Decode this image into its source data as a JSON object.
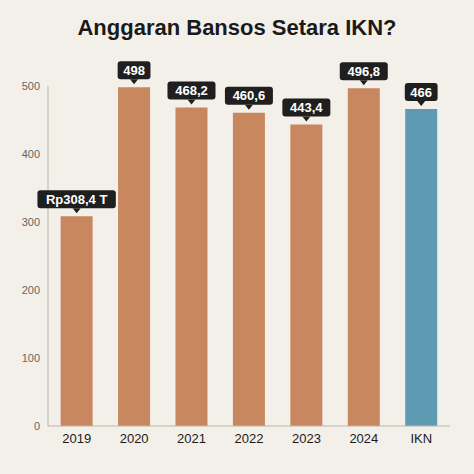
{
  "chart_data": {
    "type": "bar",
    "title": "Anggaran Bansos Setara IKN?",
    "categories": [
      "2019",
      "2020",
      "2021",
      "2022",
      "2023",
      "2024",
      "IKN"
    ],
    "values": [
      308.4,
      498,
      468.2,
      460.6,
      443.4,
      496.8,
      466
    ],
    "value_labels": [
      "Rp308,4 T",
      "498",
      "468,2",
      "460,6",
      "443,4",
      "496,8",
      "466"
    ],
    "colors": [
      "#c8875f",
      "#c8875f",
      "#c8875f",
      "#c8875f",
      "#c8875f",
      "#c8875f",
      "#5e9bb2"
    ],
    "ylim": [
      0,
      500
    ],
    "yticks": [
      0,
      100,
      200,
      300,
      400,
      500
    ],
    "grid": false,
    "data_labels": true
  }
}
